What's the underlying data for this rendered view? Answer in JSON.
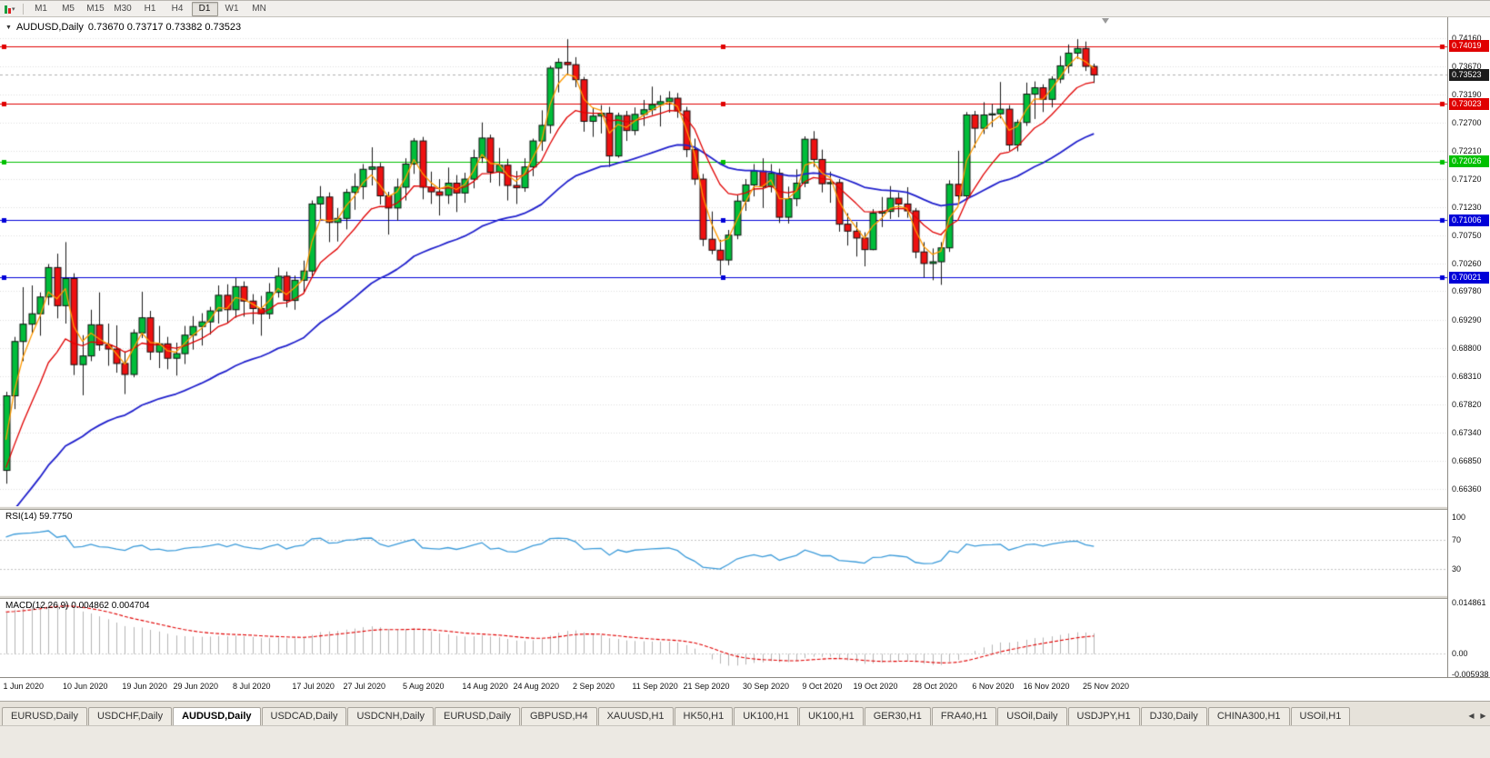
{
  "toolbar": {
    "timeframes": [
      "M1",
      "M5",
      "M15",
      "M30",
      "H1",
      "H4",
      "D1",
      "W1",
      "MN"
    ],
    "active_timeframe": "D1",
    "chart_type_icon": "candlestick-chart",
    "dropdown_icon": "▾"
  },
  "chart": {
    "symbol_label": "AUDUSD,Daily",
    "ohlc_label": "0.73670 0.73717 0.73382 0.73523",
    "collapse_icon": "▼"
  },
  "chart_data": {
    "type": "candlestick",
    "symbol": "AUDUSD",
    "timeframe": "Daily",
    "current_ohlc": {
      "open": "0.73670",
      "high": "0.73717",
      "low": "0.73382",
      "close": "0.73523"
    },
    "colors": {
      "up": "#00bd3a",
      "down": "#ee1111",
      "body_border": "#101010",
      "wick": "#181818"
    },
    "price_range": {
      "top": 0.7452,
      "bottom": 0.6606
    },
    "y_axis_ticks": [
      "0.74160",
      "0.73670",
      "0.73190",
      "0.72700",
      "0.72210",
      "0.71720",
      "0.71230",
      "0.70750",
      "0.70260",
      "0.69780",
      "0.69290",
      "0.68800",
      "0.68310",
      "0.67820",
      "0.67340",
      "0.66850",
      "0.66360"
    ],
    "x_tick_labels": [
      "1 Jun 2020",
      "10 Jun 2020",
      "19 Jun 2020",
      "29 Jun 2020",
      "8 Jul 2020",
      "17 Jul 2020",
      "27 Jul 2020",
      "5 Aug 2020",
      "14 Aug 2020",
      "24 Aug 2020",
      "2 Sep 2020",
      "11 Sep 2020",
      "21 Sep 2020",
      "30 Sep 2020",
      "9 Oct 2020",
      "19 Oct 2020",
      "28 Oct 2020",
      "6 Nov 2020",
      "16 Nov 2020",
      "25 Nov 2020"
    ],
    "x_tick_indices": [
      0,
      7,
      14,
      20,
      27,
      34,
      40,
      47,
      54,
      60,
      67,
      74,
      80,
      87,
      94,
      100,
      107,
      114,
      120,
      127
    ],
    "levels": [
      {
        "price": 0.74019,
        "label": "0.74019",
        "color": "#e00000"
      },
      {
        "price": 0.73023,
        "label": "0.73023",
        "color": "#e00000"
      },
      {
        "price": 0.72026,
        "label": "0.72026",
        "color": "#00c000"
      },
      {
        "price": 0.71006,
        "label": "0.71006",
        "color": "#0000d8"
      },
      {
        "price": 0.70021,
        "label": "0.70021",
        "color": "#0000d8"
      }
    ],
    "current_price": {
      "value": 0.73523,
      "label": "0.73523",
      "box_color": "#1c1c1c"
    },
    "moving_averages": [
      {
        "name": "fast-ma",
        "color": "#ff9900",
        "period": 3,
        "seed": 0.6645,
        "width": 1.3
      },
      {
        "name": "medium-ma",
        "color": "#e00000",
        "period": 10,
        "seed": 0.6645,
        "width": 1.3
      },
      {
        "name": "slow-ma",
        "color": "#2020cc",
        "period": 34,
        "seed": 0.657,
        "width": 1.8
      }
    ],
    "macd_range": {
      "top": 0.0158,
      "bottom": -0.0068
    },
    "indicators": [
      {
        "name": "RSI",
        "label": "RSI(14) 59.7750",
        "period": 14,
        "value": "59.7750",
        "color": "#3a9ad9",
        "levels": [
          70,
          30
        ],
        "axis_values": [
          100,
          70,
          30
        ],
        "axis_labels": [
          "100",
          "70",
          "30"
        ]
      },
      {
        "name": "MACD",
        "label": "MACD(12,26,9) 0.004862 0.004704",
        "value_main": "0.004862",
        "value_signal": "0.004704",
        "histogram_color": "#b4b4b4",
        "signal_color": "#e00000",
        "axis_values": [
          0.014861,
          0,
          -0.005938
        ],
        "axis_labels": [
          "0.014861",
          "0.00",
          "-0.005938"
        ]
      }
    ],
    "candles": [
      [
        0.6668,
        0.6804,
        0.6645,
        0.6797
      ],
      [
        0.6797,
        0.6899,
        0.6774,
        0.6891
      ],
      [
        0.6891,
        0.6985,
        0.6857,
        0.6921
      ],
      [
        0.6921,
        0.6988,
        0.6905,
        0.6939
      ],
      [
        0.6939,
        0.6976,
        0.6901,
        0.6968
      ],
      [
        0.6968,
        0.7025,
        0.6954,
        0.7019
      ],
      [
        0.7019,
        0.7043,
        0.6931,
        0.6953
      ],
      [
        0.6953,
        0.7063,
        0.6922,
        0.7
      ],
      [
        0.7,
        0.7009,
        0.6833,
        0.6851
      ],
      [
        0.6851,
        0.6902,
        0.6798,
        0.6866
      ],
      [
        0.6866,
        0.6946,
        0.6857,
        0.692
      ],
      [
        0.692,
        0.6976,
        0.6875,
        0.6885
      ],
      [
        0.6885,
        0.6922,
        0.6849,
        0.6878
      ],
      [
        0.6878,
        0.6919,
        0.6837,
        0.6853
      ],
      [
        0.6853,
        0.6874,
        0.68,
        0.6834
      ],
      [
        0.6834,
        0.6912,
        0.6829,
        0.6906
      ],
      [
        0.6906,
        0.6977,
        0.6897,
        0.6932
      ],
      [
        0.6932,
        0.6944,
        0.6859,
        0.6873
      ],
      [
        0.6873,
        0.6918,
        0.6845,
        0.6887
      ],
      [
        0.6887,
        0.6899,
        0.6843,
        0.6862
      ],
      [
        0.6862,
        0.6889,
        0.6832,
        0.687
      ],
      [
        0.687,
        0.6918,
        0.6852,
        0.6902
      ],
      [
        0.6902,
        0.6935,
        0.6877,
        0.6917
      ],
      [
        0.6917,
        0.694,
        0.6884,
        0.6925
      ],
      [
        0.6925,
        0.6951,
        0.6903,
        0.6944
      ],
      [
        0.6944,
        0.6988,
        0.6922,
        0.6971
      ],
      [
        0.6971,
        0.699,
        0.6923,
        0.6946
      ],
      [
        0.6946,
        0.7001,
        0.6932,
        0.6986
      ],
      [
        0.6986,
        0.6995,
        0.6934,
        0.6961
      ],
      [
        0.6961,
        0.6973,
        0.6921,
        0.6948
      ],
      [
        0.6948,
        0.697,
        0.6901,
        0.6939
      ],
      [
        0.6939,
        0.6992,
        0.693,
        0.6976
      ],
      [
        0.6976,
        0.7019,
        0.6967,
        0.7004
      ],
      [
        0.7004,
        0.7012,
        0.695,
        0.6962
      ],
      [
        0.6962,
        0.7005,
        0.6946,
        0.6997
      ],
      [
        0.6997,
        0.7031,
        0.6975,
        0.7013
      ],
      [
        0.7013,
        0.7135,
        0.7001,
        0.7129
      ],
      [
        0.7129,
        0.716,
        0.7101,
        0.7141
      ],
      [
        0.7141,
        0.7149,
        0.7063,
        0.7097
      ],
      [
        0.7097,
        0.7122,
        0.7064,
        0.7104
      ],
      [
        0.7104,
        0.7155,
        0.7085,
        0.7149
      ],
      [
        0.7149,
        0.7182,
        0.7119,
        0.7159
      ],
      [
        0.7159,
        0.7198,
        0.7137,
        0.7189
      ],
      [
        0.7189,
        0.7227,
        0.7161,
        0.7193
      ],
      [
        0.7193,
        0.72,
        0.7128,
        0.7143
      ],
      [
        0.7143,
        0.715,
        0.7076,
        0.7122
      ],
      [
        0.7122,
        0.7173,
        0.71,
        0.7158
      ],
      [
        0.7158,
        0.7208,
        0.7135,
        0.7198
      ],
      [
        0.7198,
        0.7243,
        0.7181,
        0.7238
      ],
      [
        0.7238,
        0.7245,
        0.7137,
        0.7158
      ],
      [
        0.7158,
        0.7185,
        0.7129,
        0.715
      ],
      [
        0.715,
        0.7172,
        0.7109,
        0.7144
      ],
      [
        0.7144,
        0.7192,
        0.7129,
        0.7165
      ],
      [
        0.7165,
        0.7179,
        0.7115,
        0.7148
      ],
      [
        0.7148,
        0.7183,
        0.7131,
        0.7172
      ],
      [
        0.7172,
        0.7223,
        0.7156,
        0.7209
      ],
      [
        0.7209,
        0.727,
        0.72,
        0.7243
      ],
      [
        0.7243,
        0.7249,
        0.7166,
        0.7184
      ],
      [
        0.7184,
        0.7226,
        0.716,
        0.7196
      ],
      [
        0.7196,
        0.7207,
        0.7135,
        0.7161
      ],
      [
        0.7161,
        0.7186,
        0.7129,
        0.7157
      ],
      [
        0.7157,
        0.7208,
        0.715,
        0.7193
      ],
      [
        0.7193,
        0.7242,
        0.7177,
        0.7238
      ],
      [
        0.7238,
        0.7291,
        0.7221,
        0.7265
      ],
      [
        0.7265,
        0.7368,
        0.7251,
        0.7364
      ],
      [
        0.7364,
        0.7381,
        0.7322,
        0.7374
      ],
      [
        0.7374,
        0.7414,
        0.7352,
        0.737
      ],
      [
        0.737,
        0.7383,
        0.7331,
        0.7344
      ],
      [
        0.7344,
        0.7349,
        0.7254,
        0.7272
      ],
      [
        0.7272,
        0.7295,
        0.7245,
        0.7281
      ],
      [
        0.7281,
        0.73,
        0.7251,
        0.7286
      ],
      [
        0.7286,
        0.7297,
        0.7193,
        0.7212
      ],
      [
        0.7212,
        0.7287,
        0.7209,
        0.7282
      ],
      [
        0.7282,
        0.729,
        0.7238,
        0.7256
      ],
      [
        0.7256,
        0.7296,
        0.7248,
        0.7284
      ],
      [
        0.7284,
        0.7309,
        0.7264,
        0.7292
      ],
      [
        0.7292,
        0.7332,
        0.7283,
        0.7301
      ],
      [
        0.7301,
        0.7317,
        0.7263,
        0.7306
      ],
      [
        0.7306,
        0.7324,
        0.7287,
        0.7312
      ],
      [
        0.7312,
        0.7321,
        0.7278,
        0.729
      ],
      [
        0.729,
        0.7297,
        0.721,
        0.7223
      ],
      [
        0.7223,
        0.7242,
        0.7162,
        0.7172
      ],
      [
        0.7172,
        0.7181,
        0.7056,
        0.7068
      ],
      [
        0.7068,
        0.7116,
        0.7042,
        0.7049
      ],
      [
        0.7049,
        0.7067,
        0.7006,
        0.7032
      ],
      [
        0.7032,
        0.7084,
        0.7023,
        0.7075
      ],
      [
        0.7075,
        0.7144,
        0.7068,
        0.7134
      ],
      [
        0.7134,
        0.7172,
        0.7117,
        0.7162
      ],
      [
        0.7162,
        0.7198,
        0.7142,
        0.7186
      ],
      [
        0.7186,
        0.7208,
        0.7122,
        0.7159
      ],
      [
        0.7159,
        0.7198,
        0.7149,
        0.7182
      ],
      [
        0.7182,
        0.719,
        0.7096,
        0.7106
      ],
      [
        0.7106,
        0.7159,
        0.7095,
        0.7138
      ],
      [
        0.7138,
        0.7189,
        0.7125,
        0.7165
      ],
      [
        0.7165,
        0.7246,
        0.7158,
        0.7241
      ],
      [
        0.7241,
        0.7255,
        0.7193,
        0.7206
      ],
      [
        0.7206,
        0.7223,
        0.7149,
        0.7164
      ],
      [
        0.7164,
        0.7185,
        0.7131,
        0.7166
      ],
      [
        0.7166,
        0.7172,
        0.7081,
        0.7094
      ],
      [
        0.7094,
        0.7113,
        0.7057,
        0.7082
      ],
      [
        0.7082,
        0.7098,
        0.7038,
        0.707
      ],
      [
        0.707,
        0.708,
        0.7021,
        0.705
      ],
      [
        0.705,
        0.712,
        0.7049,
        0.7113
      ],
      [
        0.7113,
        0.7141,
        0.7089,
        0.7116
      ],
      [
        0.7116,
        0.716,
        0.7103,
        0.7139
      ],
      [
        0.7139,
        0.7149,
        0.7106,
        0.7129
      ],
      [
        0.7129,
        0.7158,
        0.7105,
        0.7117
      ],
      [
        0.7117,
        0.7122,
        0.7035,
        0.7046
      ],
      [
        0.7046,
        0.7063,
        0.7002,
        0.7026
      ],
      [
        0.7026,
        0.7052,
        0.6997,
        0.7029
      ],
      [
        0.7029,
        0.7063,
        0.6989,
        0.7053
      ],
      [
        0.7053,
        0.717,
        0.7046,
        0.7163
      ],
      [
        0.7163,
        0.7221,
        0.713,
        0.7143
      ],
      [
        0.7143,
        0.7288,
        0.7137,
        0.7283
      ],
      [
        0.7283,
        0.729,
        0.7226,
        0.726
      ],
      [
        0.726,
        0.7305,
        0.725,
        0.7283
      ],
      [
        0.7283,
        0.7302,
        0.7262,
        0.7285
      ],
      [
        0.7285,
        0.734,
        0.7277,
        0.7293
      ],
      [
        0.7293,
        0.73,
        0.7221,
        0.7231
      ],
      [
        0.7231,
        0.7275,
        0.722,
        0.727
      ],
      [
        0.727,
        0.7339,
        0.7264,
        0.7319
      ],
      [
        0.7319,
        0.7341,
        0.7276,
        0.733
      ],
      [
        0.733,
        0.7336,
        0.7288,
        0.731
      ],
      [
        0.731,
        0.735,
        0.7296,
        0.7345
      ],
      [
        0.7345,
        0.7385,
        0.7338,
        0.7368
      ],
      [
        0.7368,
        0.7405,
        0.7355,
        0.739
      ],
      [
        0.739,
        0.7414,
        0.738,
        0.7398
      ],
      [
        0.7398,
        0.741,
        0.7359,
        0.7367
      ],
      [
        0.7367,
        0.73717,
        0.73382,
        0.73523
      ]
    ]
  },
  "bottom_tabs": {
    "scroll_left_icon": "◀",
    "scroll_right_icon": "▶",
    "tabs": [
      {
        "label": "EURUSD,Daily",
        "active": false
      },
      {
        "label": "USDCHF,Daily",
        "active": false
      },
      {
        "label": "AUDUSD,Daily",
        "active": true
      },
      {
        "label": "USDCAD,Daily",
        "active": false
      },
      {
        "label": "USDCNH,Daily",
        "active": false
      },
      {
        "label": "EURUSD,Daily",
        "active": false
      },
      {
        "label": "GBPUSD,H4",
        "active": false
      },
      {
        "label": "XAUUSD,H1",
        "active": false
      },
      {
        "label": "HK50,H1",
        "active": false
      },
      {
        "label": "UK100,H1",
        "active": false
      },
      {
        "label": "UK100,H1",
        "active": false
      },
      {
        "label": "GER30,H1",
        "active": false
      },
      {
        "label": "FRA40,H1",
        "active": false
      },
      {
        "label": "USOil,Daily",
        "active": false
      },
      {
        "label": "USDJPY,H1",
        "active": false
      },
      {
        "label": "DJ30,Daily",
        "active": false
      },
      {
        "label": "CHINA300,H1",
        "active": false
      },
      {
        "label": "USOil,H1",
        "active": false
      }
    ]
  }
}
